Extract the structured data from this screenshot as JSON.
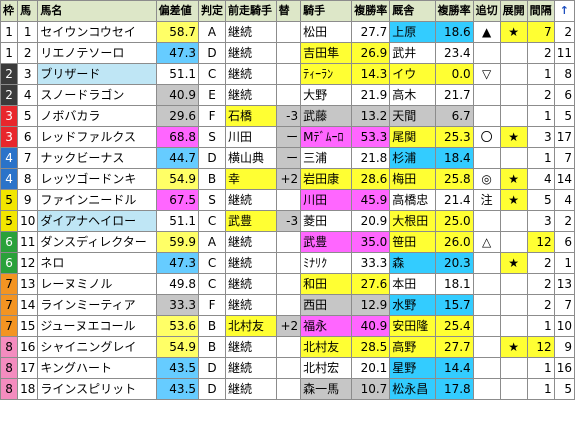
{
  "colors": {
    "header_bg": "#dde7c8",
    "waku": {
      "1": "#ffffff",
      "2": "#3b3b3b",
      "3": "#e8272c",
      "4": "#2b73c9",
      "5": "#f2e600",
      "6": "#2aa13a",
      "7": "#f39422",
      "8": "#f48cbf"
    },
    "rating": {
      "S": "#ff99ff",
      "A": "#ffff66",
      "B": "#66ccff",
      "C": "#66ccff",
      "D": "#ffcc66",
      "E": "#c0c0c0",
      "F": "#c0c0c0"
    },
    "highlight_yellow": "#ffff33",
    "highlight_blue": "#33ccff",
    "highlight_lblue": "#bfe6f5",
    "highlight_gray": "#c6c6c6",
    "highlight_magenta": "#ff66ff",
    "highlight_cyan": "#00ffff",
    "highlight_green": "#a6d7a0",
    "highlight_tan": "#f3c98c"
  },
  "headers": {
    "waku": "枠",
    "num": "馬",
    "name": "馬名",
    "dev": "偏差値",
    "grade": "判定",
    "prev_jockey": "前走騎手",
    "change": "替",
    "jockey": "騎手",
    "j_rate": "複勝率",
    "trainer": "厩舎",
    "t_rate": "複勝率",
    "chase": "追切",
    "dev2": "展開",
    "interval": "間隔",
    "sort_icon": "↑"
  },
  "rows": [
    {
      "waku": "1",
      "num": "1",
      "name": "セイウンコウセイ",
      "dev": "58.7",
      "grade": "A",
      "prev": "継続",
      "change": "",
      "jockey": "松田",
      "jrate": "27.7",
      "trainer": "上原",
      "trate": "18.6",
      "chase": "▲",
      "star": "★",
      "interval": "7",
      "last": "2",
      "name_bg": "",
      "dev_bg": "#ffff66",
      "prev_bg": "",
      "jockey_bg": "",
      "trainer_bg": "#33ccff",
      "int_bg": "#ffff33"
    },
    {
      "waku": "1",
      "num": "2",
      "name": "リエノテソーロ",
      "dev": "47.3",
      "grade": "D",
      "prev": "継続",
      "change": "",
      "jockey": "吉田隼",
      "jrate": "26.9",
      "trainer": "武井",
      "trate": "23.4",
      "chase": "",
      "star": "",
      "interval": "2",
      "last": "11",
      "name_bg": "",
      "dev_bg": "#66ccff",
      "prev_bg": "",
      "jockey_bg": "#ffff33",
      "trainer_bg": "",
      "int_bg": ""
    },
    {
      "waku": "2",
      "num": "3",
      "name": "ブリザード",
      "dev": "51.1",
      "grade": "C",
      "prev": "継続",
      "change": "",
      "jockey": "ﾃｨｰﾗﾝ",
      "jrate": "14.3",
      "trainer": "イウ",
      "trate": "0.0",
      "chase": "▽",
      "star": "",
      "interval": "1",
      "last": "8",
      "name_bg": "#bfe6f5",
      "dev_bg": "",
      "prev_bg": "",
      "jockey_bg": "#ffff33",
      "trainer_bg": "#ffff33",
      "int_bg": ""
    },
    {
      "waku": "2",
      "num": "4",
      "name": "スノードラゴン",
      "dev": "40.9",
      "grade": "E",
      "prev": "継続",
      "change": "",
      "jockey": "大野",
      "jrate": "21.9",
      "trainer": "高木",
      "trate": "21.7",
      "chase": "",
      "star": "",
      "interval": "2",
      "last": "6",
      "name_bg": "",
      "dev_bg": "#c6c6c6",
      "prev_bg": "",
      "jockey_bg": "",
      "trainer_bg": "",
      "int_bg": ""
    },
    {
      "waku": "3",
      "num": "5",
      "name": "ノボバカラ",
      "dev": "29.6",
      "grade": "F",
      "prev": "石橋",
      "change": "-3",
      "jockey": "武藤",
      "jrate": "13.2",
      "trainer": "天間",
      "trate": "6.7",
      "chase": "",
      "star": "",
      "interval": "1",
      "last": "5",
      "name_bg": "",
      "dev_bg": "#c6c6c6",
      "prev_bg": "#ffff33",
      "jockey_bg": "#c6c6c6",
      "trainer_bg": "#c6c6c6",
      "int_bg": ""
    },
    {
      "waku": "3",
      "num": "6",
      "name": "レッドファルクス",
      "dev": "68.8",
      "grade": "S",
      "prev": "川田",
      "change": "ー",
      "jockey": "Mﾃﾞﾑｰﾛ",
      "jrate": "53.3",
      "trainer": "尾関",
      "trate": "25.3",
      "chase": "〇",
      "star": "★",
      "interval": "3",
      "last": "17",
      "name_bg": "",
      "dev_bg": "#ff66ff",
      "prev_bg": "",
      "jockey_bg": "#ff66ff",
      "trainer_bg": "#ffff33",
      "int_bg": ""
    },
    {
      "waku": "4",
      "num": "7",
      "name": "ナックビーナス",
      "dev": "44.7",
      "grade": "D",
      "prev": "横山典",
      "change": "ー",
      "jockey": "三浦",
      "jrate": "21.8",
      "trainer": "杉浦",
      "trate": "18.4",
      "chase": "",
      "star": "",
      "interval": "1",
      "last": "7",
      "name_bg": "",
      "dev_bg": "#66ccff",
      "prev_bg": "",
      "jockey_bg": "",
      "trainer_bg": "#33ccff",
      "int_bg": ""
    },
    {
      "waku": "4",
      "num": "8",
      "name": "レッツゴードンキ",
      "dev": "54.9",
      "grade": "B",
      "prev": "幸",
      "change": "+2",
      "jockey": "岩田康",
      "jrate": "28.6",
      "trainer": "梅田",
      "trate": "25.8",
      "chase": "◎",
      "star": "★",
      "interval": "4",
      "last": "14",
      "name_bg": "",
      "dev_bg": "#ffff66",
      "prev_bg": "#ffff33",
      "jockey_bg": "#ffff33",
      "trainer_bg": "#ffff33",
      "int_bg": ""
    },
    {
      "waku": "5",
      "num": "9",
      "name": "ファインニードル",
      "dev": "67.5",
      "grade": "S",
      "prev": "継続",
      "change": "",
      "jockey": "川田",
      "jrate": "45.9",
      "trainer": "高橋忠",
      "trate": "21.4",
      "chase": "注",
      "star": "★",
      "interval": "5",
      "last": "4",
      "name_bg": "",
      "dev_bg": "#ff66ff",
      "prev_bg": "",
      "jockey_bg": "#ff66ff",
      "trainer_bg": "",
      "int_bg": ""
    },
    {
      "waku": "5",
      "num": "10",
      "name": "ダイアナヘイロー",
      "dev": "51.1",
      "grade": "C",
      "prev": "武豊",
      "change": "-3",
      "jockey": "菱田",
      "jrate": "20.9",
      "trainer": "大根田",
      "trate": "25.0",
      "chase": "",
      "star": "",
      "interval": "3",
      "last": "2",
      "name_bg": "#bfe6f5",
      "dev_bg": "",
      "prev_bg": "#ffff33",
      "jockey_bg": "",
      "trainer_bg": "#ffff33",
      "int_bg": ""
    },
    {
      "waku": "6",
      "num": "11",
      "name": "ダンスディレクター",
      "dev": "59.9",
      "grade": "A",
      "prev": "継続",
      "change": "",
      "jockey": "武豊",
      "jrate": "35.0",
      "trainer": "笹田",
      "trate": "26.0",
      "chase": "△",
      "star": "",
      "interval": "12",
      "last": "6",
      "name_bg": "",
      "dev_bg": "#ffff66",
      "prev_bg": "",
      "jockey_bg": "#ff66ff",
      "trainer_bg": "#ffff33",
      "int_bg": "#ffff33"
    },
    {
      "waku": "6",
      "num": "12",
      "name": "ネロ",
      "dev": "47.3",
      "grade": "C",
      "prev": "継続",
      "change": "",
      "jockey": "ﾐﾅﾘｸ",
      "jrate": "33.3",
      "trainer": "森",
      "trate": "20.3",
      "chase": "",
      "star": "★",
      "interval": "2",
      "last": "1",
      "name_bg": "",
      "dev_bg": "#66ccff",
      "prev_bg": "",
      "jockey_bg": "",
      "trainer_bg": "#33ccff",
      "int_bg": ""
    },
    {
      "waku": "7",
      "num": "13",
      "name": "レーヌミノル",
      "dev": "49.8",
      "grade": "C",
      "prev": "継続",
      "change": "",
      "jockey": "和田",
      "jrate": "27.6",
      "trainer": "本田",
      "trate": "18.1",
      "chase": "",
      "star": "",
      "interval": "2",
      "last": "13",
      "name_bg": "",
      "dev_bg": "",
      "prev_bg": "",
      "jockey_bg": "#ffff33",
      "trainer_bg": "",
      "int_bg": ""
    },
    {
      "waku": "7",
      "num": "14",
      "name": "ラインミーティア",
      "dev": "33.3",
      "grade": "F",
      "prev": "継続",
      "change": "",
      "jockey": "西田",
      "jrate": "12.9",
      "trainer": "水野",
      "trate": "15.7",
      "chase": "",
      "star": "",
      "interval": "2",
      "last": "7",
      "name_bg": "",
      "dev_bg": "#c6c6c6",
      "prev_bg": "",
      "jockey_bg": "#c6c6c6",
      "trainer_bg": "#33ccff",
      "int_bg": ""
    },
    {
      "waku": "7",
      "num": "15",
      "name": "ジューヌエコール",
      "dev": "53.6",
      "grade": "B",
      "prev": "北村友",
      "change": "+2",
      "jockey": "福永",
      "jrate": "40.9",
      "trainer": "安田隆",
      "trate": "25.4",
      "chase": "",
      "star": "",
      "interval": "1",
      "last": "10",
      "name_bg": "",
      "dev_bg": "#ffff66",
      "prev_bg": "#ffff33",
      "jockey_bg": "#ff66ff",
      "trainer_bg": "#ffff33",
      "int_bg": ""
    },
    {
      "waku": "8",
      "num": "16",
      "name": "シャイニングレイ",
      "dev": "54.9",
      "grade": "B",
      "prev": "継続",
      "change": "",
      "jockey": "北村友",
      "jrate": "28.5",
      "trainer": "高野",
      "trate": "27.7",
      "chase": "",
      "star": "★",
      "interval": "12",
      "last": "9",
      "name_bg": "",
      "dev_bg": "#ffff66",
      "prev_bg": "",
      "jockey_bg": "#ffff33",
      "trainer_bg": "#ffff33",
      "int_bg": "#ffff33"
    },
    {
      "waku": "8",
      "num": "17",
      "name": "キングハート",
      "dev": "43.5",
      "grade": "D",
      "prev": "継続",
      "change": "",
      "jockey": "北村宏",
      "jrate": "20.1",
      "trainer": "星野",
      "trate": "14.4",
      "chase": "",
      "star": "",
      "interval": "1",
      "last": "16",
      "name_bg": "",
      "dev_bg": "#66ccff",
      "prev_bg": "",
      "jockey_bg": "",
      "trainer_bg": "#33ccff",
      "int_bg": ""
    },
    {
      "waku": "8",
      "num": "18",
      "name": "ラインスピリット",
      "dev": "43.5",
      "grade": "D",
      "prev": "継続",
      "change": "",
      "jockey": "森一馬",
      "jrate": "10.7",
      "trainer": "松永昌",
      "trate": "17.8",
      "chase": "",
      "star": "",
      "interval": "1",
      "last": "5",
      "name_bg": "",
      "dev_bg": "#66ccff",
      "prev_bg": "",
      "jockey_bg": "#c6c6c6",
      "trainer_bg": "#33ccff",
      "int_bg": ""
    }
  ]
}
